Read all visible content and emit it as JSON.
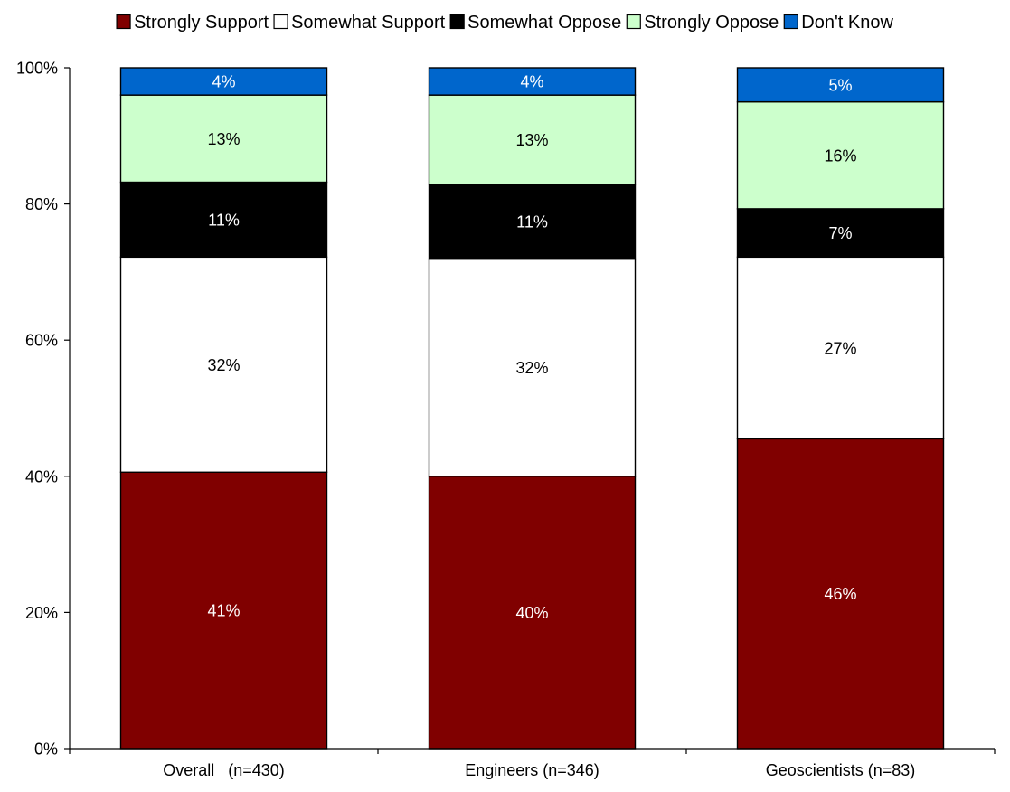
{
  "chart_data": {
    "type": "bar",
    "stacked": true,
    "percent": true,
    "title": "",
    "xlabel": "",
    "ylabel": "",
    "ylim": [
      0,
      100
    ],
    "yticks": [
      "0%",
      "20%",
      "40%",
      "60%",
      "80%",
      "100%"
    ],
    "grid": false,
    "legend_position": "top",
    "categories": [
      "Overall   (n=430)",
      "Engineers (n=346)",
      "Geoscientists (n=83)"
    ],
    "series": [
      {
        "name": "Strongly Support",
        "color": "#800000",
        "label_color": "#ffffff",
        "values": [
          40.6,
          40.0,
          45.5
        ],
        "labels": [
          "41%",
          "40%",
          "46%"
        ]
      },
      {
        "name": "Somewhat Support",
        "color": "#ffffff",
        "label_color": "#000000",
        "values": [
          31.6,
          31.9,
          26.7
        ],
        "labels": [
          "32%",
          "32%",
          "27%"
        ]
      },
      {
        "name": "Somewhat Oppose",
        "color": "#000000",
        "label_color": "#ffffff",
        "values": [
          11.0,
          11.0,
          7.1
        ],
        "labels": [
          "11%",
          "11%",
          "7%"
        ]
      },
      {
        "name": "Strongly Oppose",
        "color": "#ccffcc",
        "label_color": "#000000",
        "values": [
          12.8,
          13.1,
          15.7
        ],
        "labels": [
          "13%",
          "13%",
          "16%"
        ]
      },
      {
        "name": "Don't Know",
        "color": "#0066cc",
        "label_color": "#ffffff",
        "values": [
          4.0,
          4.0,
          5.0
        ],
        "labels": [
          "4%",
          "4%",
          "5%"
        ]
      }
    ]
  }
}
